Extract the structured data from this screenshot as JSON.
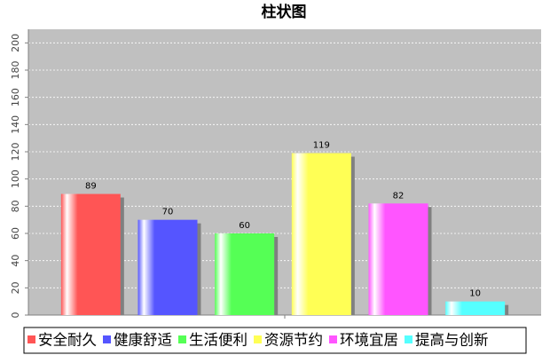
{
  "chart_data": {
    "type": "bar",
    "title": "柱状图",
    "categories": [
      null
    ],
    "series": [
      {
        "name": "安全耐久",
        "color": "#ff5555",
        "values": [
          89
        ]
      },
      {
        "name": "健康舒适",
        "color": "#5555ff",
        "values": [
          70
        ]
      },
      {
        "name": "生活便利",
        "color": "#55ff55",
        "values": [
          60
        ]
      },
      {
        "name": "资源节约",
        "color": "#ffff55",
        "values": [
          119
        ]
      },
      {
        "name": "环境宜居",
        "color": "#ff55ff",
        "values": [
          82
        ]
      },
      {
        "name": "提高与创新",
        "color": "#55ffff",
        "values": [
          10
        ]
      }
    ],
    "ylim": [
      0,
      210
    ],
    "yticks": [
      0,
      20,
      40,
      60,
      80,
      100,
      120,
      140,
      160,
      180,
      200
    ],
    "grid": true,
    "legend": "bottom"
  }
}
